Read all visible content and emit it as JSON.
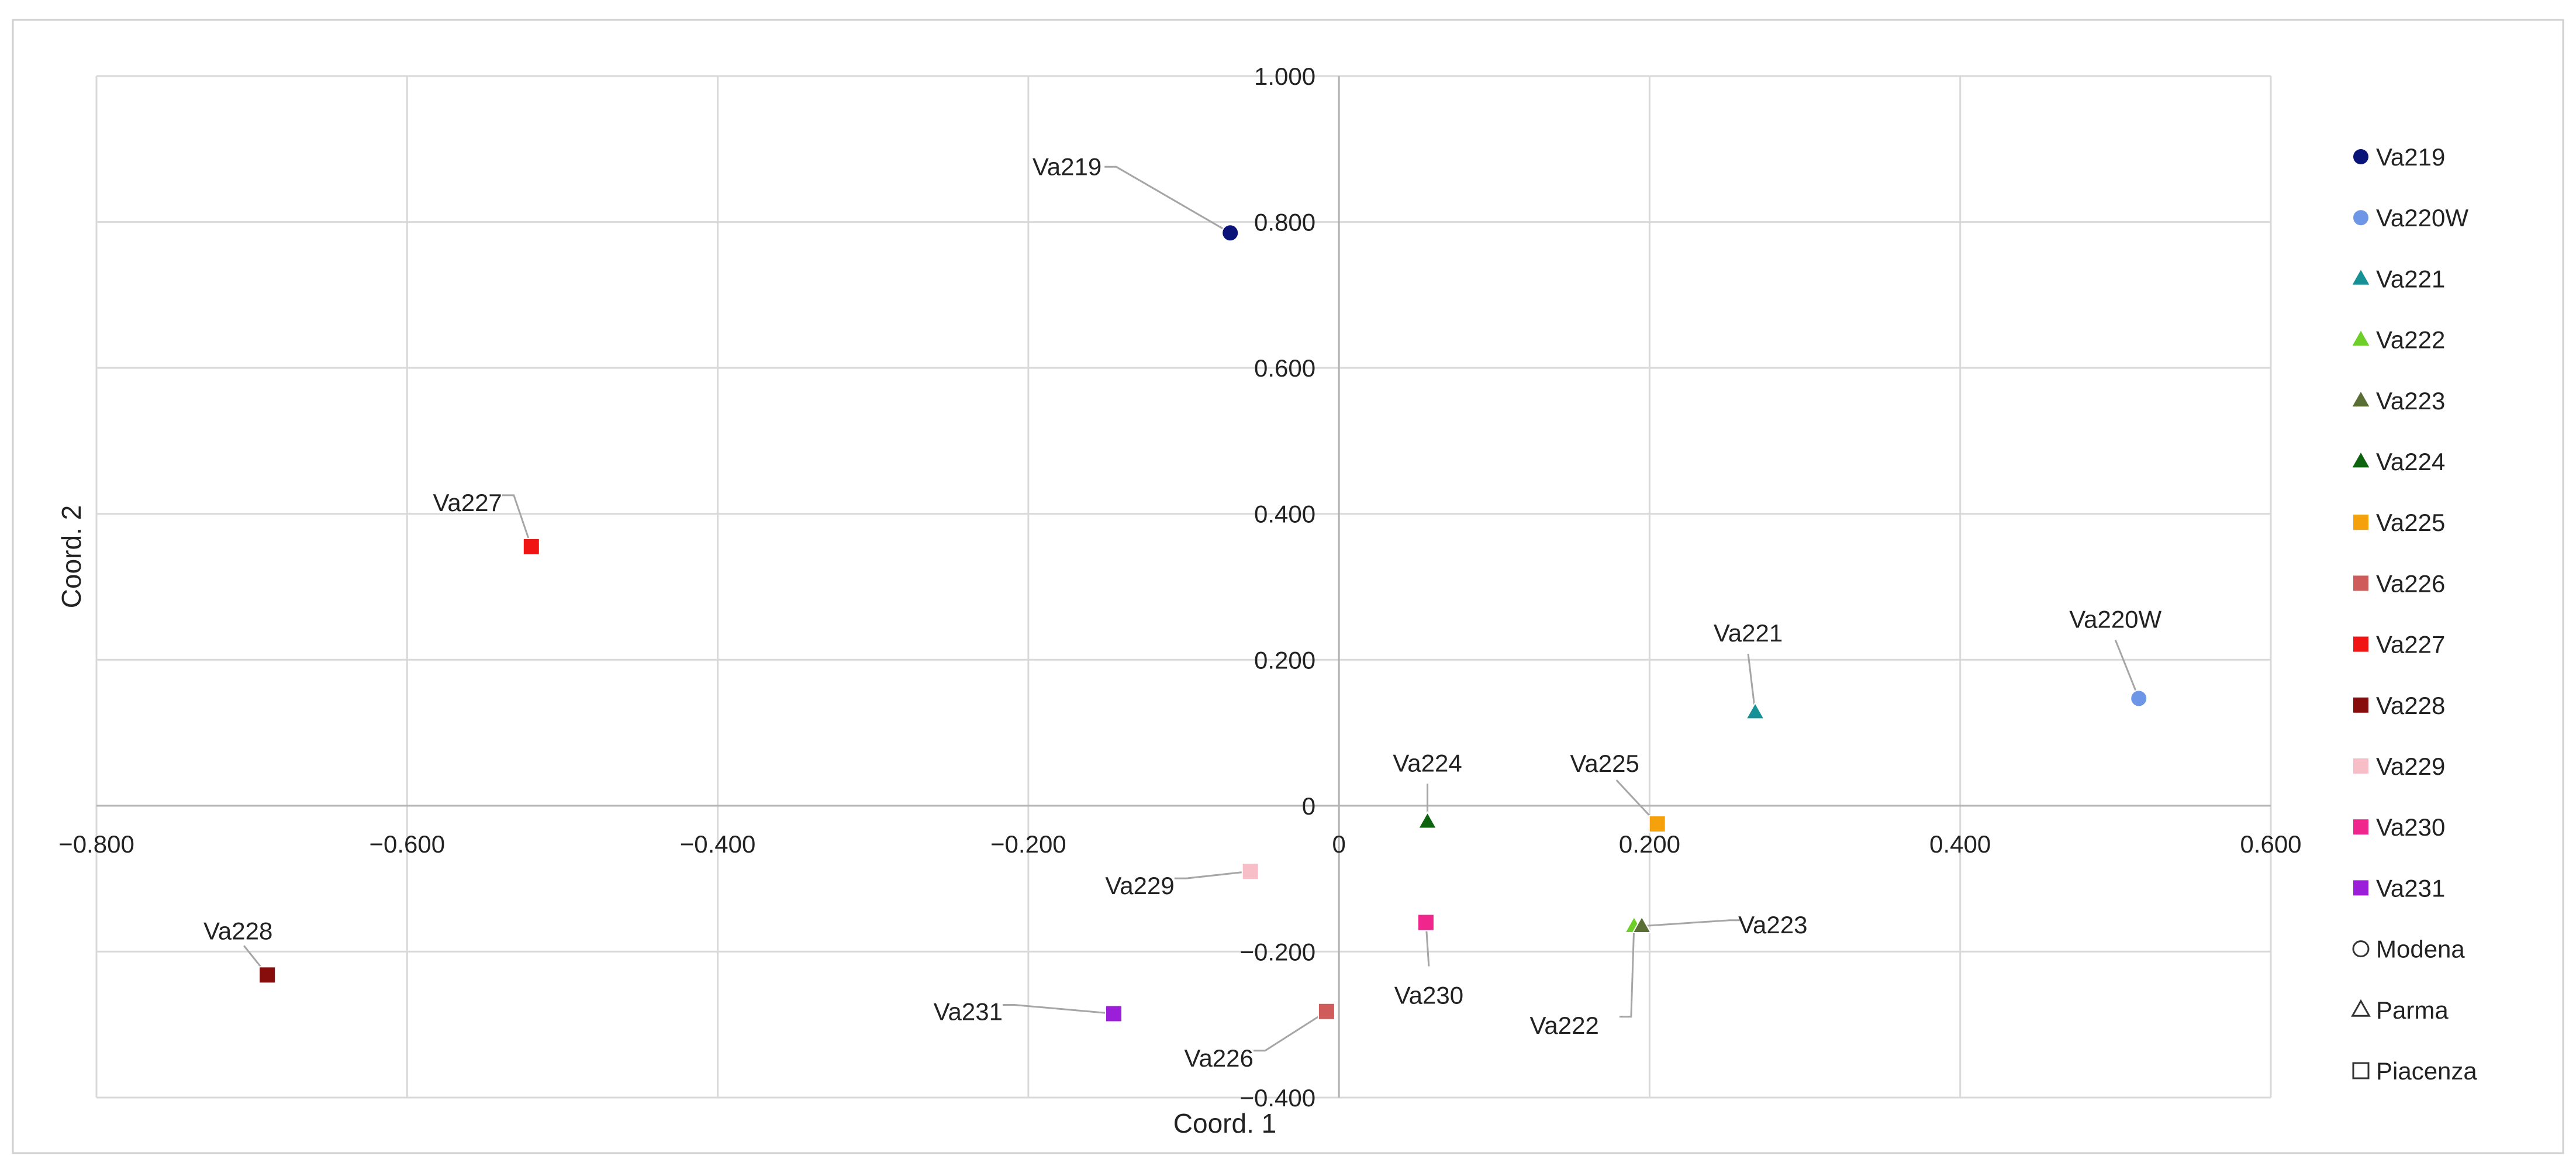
{
  "chart_data": {
    "type": "scatter",
    "xlabel": "Coord. 1",
    "ylabel": "Coord. 2",
    "xlim": [
      -0.8,
      0.6
    ],
    "ylim": [
      -0.4,
      1.0
    ],
    "x_ticks": [
      -0.8,
      -0.6,
      -0.4,
      -0.2,
      0,
      0.2,
      0.4,
      0.6
    ],
    "y_ticks": [
      -0.4,
      -0.2,
      0,
      0.2,
      0.4,
      0.6,
      0.8,
      1.0
    ],
    "x_tick_labels": [
      "−0.800",
      "−0.600",
      "−0.400",
      "−0.200",
      "0",
      "0.200",
      "0.400",
      "0.600"
    ],
    "y_tick_labels": [
      "−0.400",
      "−0.200",
      "0",
      "0.200",
      "0.400",
      "0.600",
      "0.800",
      "1.000"
    ],
    "grid": true,
    "legend_position": "right",
    "series": [
      {
        "name": "Va219",
        "x": -0.07,
        "y": 0.785,
        "marker": "circle",
        "color": "#0a1478"
      },
      {
        "name": "Va220W",
        "x": 0.515,
        "y": 0.147,
        "marker": "circle",
        "color": "#6d96e6"
      },
      {
        "name": "Va221",
        "x": 0.268,
        "y": 0.128,
        "marker": "triangle",
        "color": "#169297"
      },
      {
        "name": "Va222",
        "x": 0.19,
        "y": -0.165,
        "marker": "triangle",
        "color": "#6ecf29"
      },
      {
        "name": "Va223",
        "x": 0.195,
        "y": -0.165,
        "marker": "triangle",
        "color": "#5a6f35"
      },
      {
        "name": "Va224",
        "x": 0.057,
        "y": -0.022,
        "marker": "triangle",
        "color": "#0e640e"
      },
      {
        "name": "Va225",
        "x": 0.205,
        "y": -0.025,
        "marker": "square",
        "color": "#f5a10b"
      },
      {
        "name": "Va226",
        "x": -0.008,
        "y": -0.282,
        "marker": "square",
        "color": "#cf5b5b"
      },
      {
        "name": "Va227",
        "x": -0.52,
        "y": 0.355,
        "marker": "square",
        "color": "#f01414"
      },
      {
        "name": "Va228",
        "x": -0.69,
        "y": -0.232,
        "marker": "square",
        "color": "#870d0d"
      },
      {
        "name": "Va229",
        "x": -0.057,
        "y": -0.09,
        "marker": "square",
        "color": "#f7bec7"
      },
      {
        "name": "Va230",
        "x": 0.056,
        "y": -0.16,
        "marker": "square",
        "color": "#f0268c"
      },
      {
        "name": "Va231",
        "x": -0.145,
        "y": -0.285,
        "marker": "square",
        "color": "#9b1ed9"
      }
    ],
    "point_labels": [
      {
        "series": "Va219",
        "text": "Va219"
      },
      {
        "series": "Va220W",
        "text": "Va220W"
      },
      {
        "series": "Va221",
        "text": "Va221"
      },
      {
        "series": "Va222",
        "text": "Va222"
      },
      {
        "series": "Va223",
        "text": "Va223"
      },
      {
        "series": "Va224",
        "text": "Va224"
      },
      {
        "series": "Va225",
        "text": "Va225"
      },
      {
        "series": "Va226",
        "text": "Va226"
      },
      {
        "series": "Va227",
        "text": "Va227"
      },
      {
        "series": "Va228",
        "text": "Va228"
      },
      {
        "series": "Va229",
        "text": "Va229"
      },
      {
        "series": "Va230",
        "text": "Va230"
      },
      {
        "series": "Va231",
        "text": "Va231"
      }
    ],
    "legend": [
      {
        "label": "Va219",
        "marker": "circle",
        "color": "#0a1478",
        "filled": true
      },
      {
        "label": "Va220W",
        "marker": "circle",
        "color": "#6d96e6",
        "filled": true
      },
      {
        "label": "Va221",
        "marker": "triangle",
        "color": "#169297",
        "filled": true
      },
      {
        "label": "Va222",
        "marker": "triangle",
        "color": "#6ecf29",
        "filled": true
      },
      {
        "label": "Va223",
        "marker": "triangle",
        "color": "#5a6f35",
        "filled": true
      },
      {
        "label": "Va224",
        "marker": "triangle",
        "color": "#0e640e",
        "filled": true
      },
      {
        "label": "Va225",
        "marker": "square",
        "color": "#f5a10b",
        "filled": true
      },
      {
        "label": "Va226",
        "marker": "square",
        "color": "#cf5b5b",
        "filled": true
      },
      {
        "label": "Va227",
        "marker": "square",
        "color": "#f01414",
        "filled": true
      },
      {
        "label": "Va228",
        "marker": "square",
        "color": "#870d0d",
        "filled": true
      },
      {
        "label": "Va229",
        "marker": "square",
        "color": "#f7bec7",
        "filled": true
      },
      {
        "label": "Va230",
        "marker": "square",
        "color": "#f0268c",
        "filled": true
      },
      {
        "label": "Va231",
        "marker": "square",
        "color": "#9b1ed9",
        "filled": true
      },
      {
        "label": "Modena",
        "marker": "circle",
        "color": "#333333",
        "filled": false
      },
      {
        "label": "Parma",
        "marker": "triangle",
        "color": "#333333",
        "filled": false
      },
      {
        "label": "Piacenza",
        "marker": "square",
        "color": "#333333",
        "filled": false
      }
    ]
  }
}
